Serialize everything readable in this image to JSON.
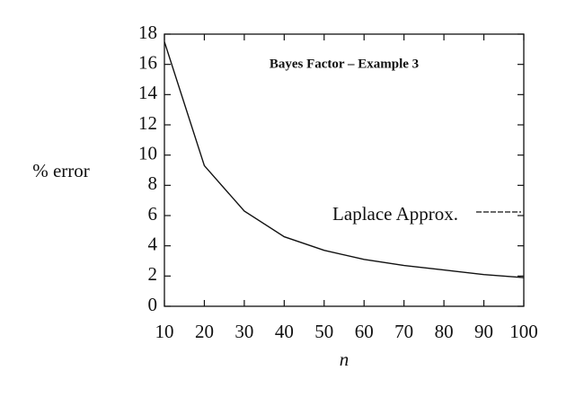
{
  "chart_data": {
    "type": "line",
    "title": "Bayes Factor – Example 3",
    "x_label": "n",
    "y_label": "% error",
    "x": [
      10,
      20,
      30,
      40,
      50,
      60,
      70,
      80,
      90,
      100
    ],
    "series": [
      {
        "name": "Laplace Approx.",
        "color": "#111111",
        "values": [
          17.5,
          9.3,
          6.3,
          4.6,
          3.7,
          3.1,
          2.7,
          2.4,
          2.1,
          1.9
        ]
      }
    ],
    "xlim": [
      10,
      100
    ],
    "xticks": [
      10,
      20,
      30,
      40,
      50,
      60,
      70,
      80,
      90,
      100
    ],
    "ylim": [
      0,
      18
    ],
    "yticks": [
      0,
      2,
      4,
      6,
      8,
      10,
      12,
      14,
      16,
      18
    ],
    "legend": "right"
  }
}
